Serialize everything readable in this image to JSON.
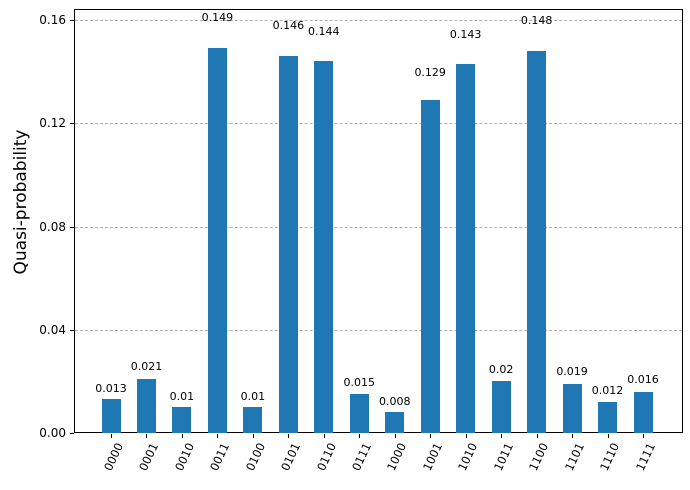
{
  "chart_data": {
    "type": "bar",
    "title": "",
    "ylabel": "Quasi-probability",
    "xlabel": "",
    "categories": [
      "0000",
      "0001",
      "0010",
      "0011",
      "0100",
      "0101",
      "0110",
      "0111",
      "1000",
      "1001",
      "1010",
      "1011",
      "1100",
      "1101",
      "1110",
      "1111"
    ],
    "values": [
      0.013,
      0.021,
      0.01,
      0.149,
      0.01,
      0.146,
      0.144,
      0.015,
      0.008,
      0.129,
      0.143,
      0.02,
      0.148,
      0.019,
      0.012,
      0.016
    ],
    "value_labels": [
      "0.013",
      "0.021",
      "0.01",
      "0.149",
      "0.01",
      "0.146",
      "0.144",
      "0.015",
      "0.008",
      "0.129",
      "0.143",
      "0.02",
      "0.148",
      "0.019",
      "0.012",
      "0.016"
    ],
    "yticks": [
      {
        "label": "0.00",
        "value": 0.0
      },
      {
        "label": "0.04",
        "value": 0.04
      },
      {
        "label": "0.08",
        "value": 0.08
      },
      {
        "label": "0.12",
        "value": 0.12
      },
      {
        "label": "0.16",
        "value": 0.16
      }
    ],
    "ylim": [
      0,
      0.164
    ],
    "x_tick_rotation_deg": 65,
    "grid": {
      "axis": "y",
      "linestyle": "dashed",
      "color": "#b0b0b0"
    },
    "legend_position": "none",
    "colors": {
      "bar": "#1f77b4",
      "axis": "#000000",
      "text": "#000000",
      "background": "#ffffff"
    }
  }
}
